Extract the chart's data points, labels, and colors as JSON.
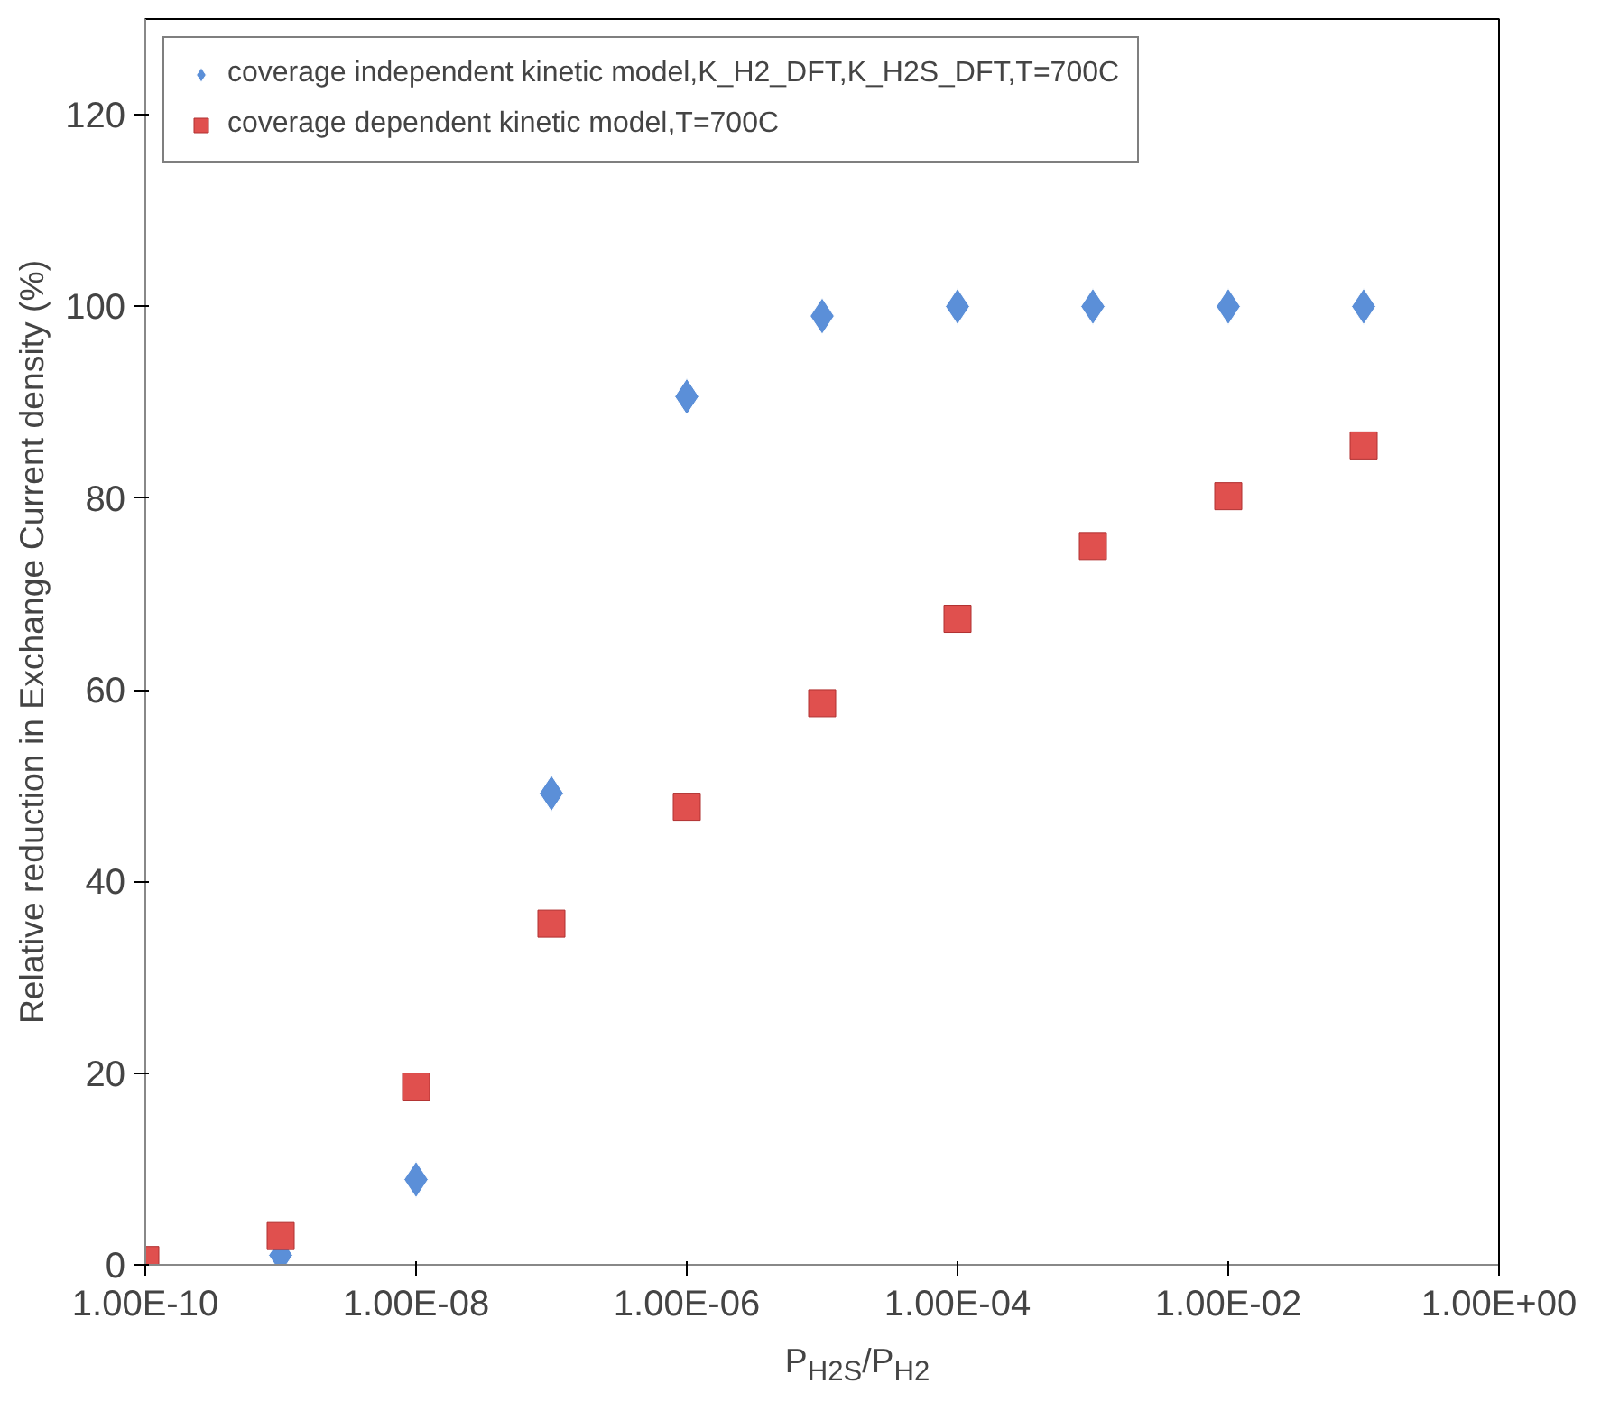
{
  "chart_data": {
    "type": "scatter",
    "xlabel": "P$_{H2S}$/P$_{H2}$",
    "ylabel": "Relative reduction in Exchange Current density (%)",
    "x": [
      1e-10,
      1e-09,
      1e-08,
      1e-07,
      1e-06,
      1e-05,
      0.0001,
      0.001,
      0.01,
      0.1
    ],
    "series": [
      {
        "name": "coverage independent kinetic model,K_H2_DFT,K_H2S_DFT,T=700C",
        "color": "#5b8fd8",
        "marker": "diamond",
        "values": [
          null,
          1,
          8.9,
          49.2,
          90.6,
          99,
          100,
          100,
          100,
          100
        ]
      },
      {
        "name": "coverage dependent kinetic model,T=700C",
        "color": "#e0504e",
        "marker": "square",
        "values": [
          0.5,
          3,
          18.6,
          35.6,
          47.8,
          58.6,
          67.4,
          75,
          80.2,
          85.5
        ]
      }
    ],
    "log": "x",
    "xlim": [
      1e-10,
      1
    ],
    "xticks": [
      {
        "value": 1e-10,
        "label": "1.00E-10"
      },
      {
        "value": 1e-08,
        "label": "1.00E-08"
      },
      {
        "value": 1e-06,
        "label": "1.00E-06"
      },
      {
        "value": 0.0001,
        "label": "1.00E-04"
      },
      {
        "value": 0.01,
        "label": "1.00E-02"
      },
      {
        "value": 1,
        "label": "1.00E+00"
      }
    ],
    "ylim": [
      0,
      130
    ],
    "yticks": [
      0,
      20,
      40,
      60,
      80,
      100,
      120
    ],
    "grid": false,
    "legend": "top left"
  }
}
